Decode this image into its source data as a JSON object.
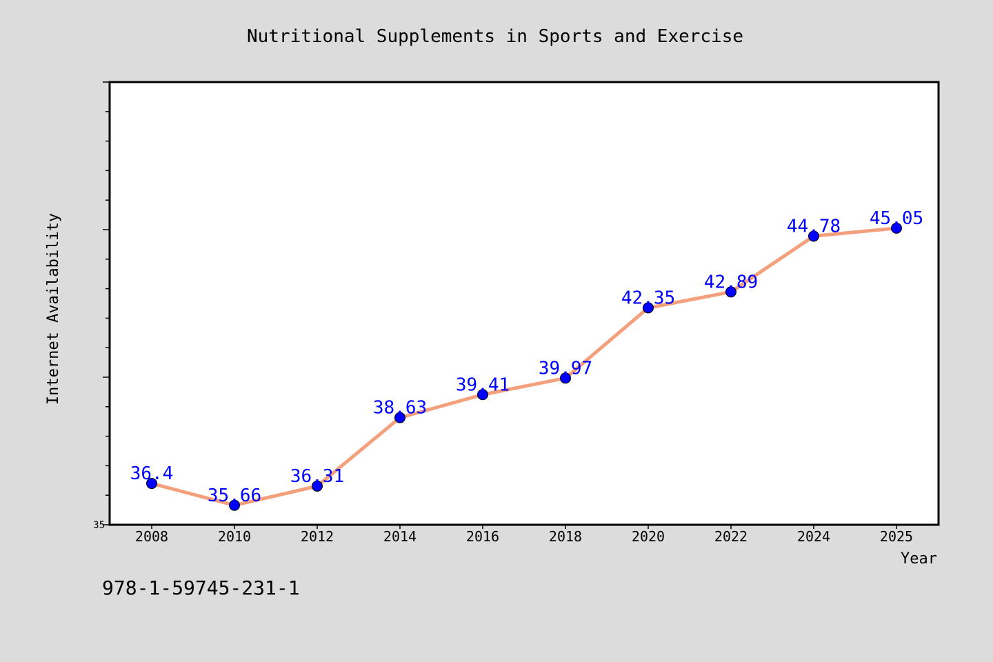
{
  "chart_data": {
    "type": "line",
    "title": "Nutritional Supplements in Sports and Exercise",
    "xlabel": "Year",
    "ylabel": "Internet Availability",
    "categories": [
      "2008",
      "2010",
      "2012",
      "2014",
      "2016",
      "2018",
      "2020",
      "2022",
      "2024",
      "2025"
    ],
    "series": [
      {
        "values": [
          36.4,
          35.66,
          36.31,
          38.63,
          39.41,
          39.97,
          42.35,
          42.89,
          44.78,
          45.05
        ]
      }
    ],
    "data_labels": [
      "36.4",
      "35.66",
      "36.31",
      "38.63",
      "39.41",
      "39.97",
      "42.35",
      "42.89",
      "44.78",
      "45.05"
    ],
    "ylim": [
      35,
      50
    ],
    "y_tick_labels": [
      "35"
    ],
    "grid": false,
    "colors": {
      "line": "#f4a07c",
      "marker": "#0000ff",
      "label": "#0000ff",
      "background": "#dcdcdc",
      "plot_background": "#ffffff"
    }
  },
  "footer": {
    "isbn": "978-1-59745-231-1"
  }
}
